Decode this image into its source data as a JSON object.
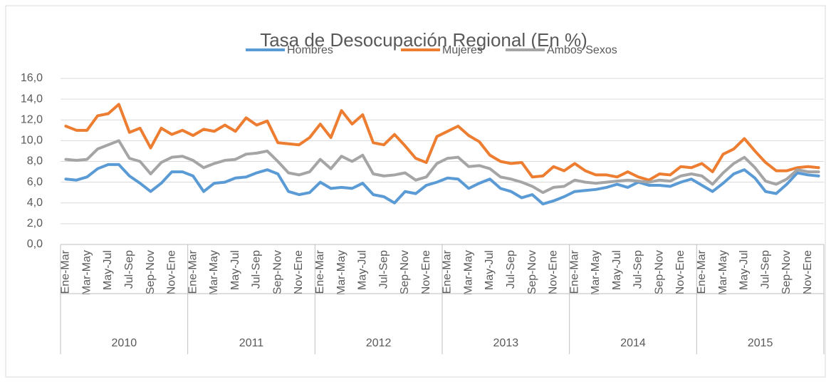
{
  "chart_data": {
    "type": "line",
    "title": "Tasa de Desocupación Regional (En %)",
    "years": [
      "2010",
      "2011",
      "2012",
      "2013",
      "2014",
      "2015"
    ],
    "categories": [
      "Ene-Mar",
      null,
      "Mar-May",
      null,
      "May-Jul",
      null,
      "Jul-Sep",
      null,
      "Sep-Nov",
      null,
      "Nov-Ene",
      null,
      "Ene-Mar",
      null,
      "Mar-May",
      null,
      "May-Jul",
      null,
      "Jul-Sep",
      null,
      "Sep-Nov",
      null,
      "Nov-Ene",
      null,
      "Ene-Mar",
      null,
      "Mar-May",
      null,
      "May-Jul",
      null,
      "Jul-Sep",
      null,
      "Sep-Nov",
      null,
      "Nov-Ene",
      null,
      "Ene-Mar",
      null,
      "Mar-May",
      null,
      "May-Jul",
      null,
      "Jul-Sep",
      null,
      "Sep-Nov",
      null,
      "Nov-Ene",
      null,
      "Ene-Mar",
      null,
      "Mar-May",
      null,
      "May-Jul",
      null,
      "Jul-Sep",
      null,
      "Sep-Nov",
      null,
      "Nov-Ene",
      null,
      "Ene-Mar",
      null,
      "Mar-May",
      null,
      "May-Jul",
      null,
      "Jul-Sep",
      null,
      "Sep-Nov",
      null,
      "Nov-Ene",
      null
    ],
    "series": [
      {
        "name": "Hombres",
        "color": "#5b9bd5",
        "values": [
          6.3,
          6.2,
          6.5,
          7.3,
          7.7,
          7.7,
          6.6,
          5.9,
          5.1,
          5.9,
          7.0,
          7.0,
          6.6,
          5.1,
          5.9,
          6.0,
          6.4,
          6.5,
          6.9,
          7.2,
          6.8,
          5.1,
          4.8,
          5.0,
          6.0,
          5.4,
          5.5,
          5.4,
          5.9,
          4.8,
          4.6,
          4.0,
          5.1,
          4.9,
          5.7,
          6.0,
          6.4,
          6.3,
          5.4,
          5.9,
          6.3,
          5.4,
          5.1,
          4.5,
          4.8,
          3.9,
          4.2,
          4.6,
          5.1,
          5.2,
          5.3,
          5.5,
          5.8,
          5.5,
          6.0,
          5.7,
          5.7,
          5.6,
          6.0,
          6.3,
          5.7,
          5.1,
          5.9,
          6.8,
          7.2,
          6.4,
          5.1,
          4.9,
          5.8,
          6.9,
          6.7,
          6.6
        ]
      },
      {
        "name": "Mujeres",
        "color": "#ed7d31",
        "values": [
          11.4,
          11.0,
          11.0,
          12.4,
          12.6,
          13.5,
          10.8,
          11.2,
          9.3,
          11.2,
          10.6,
          11.0,
          10.5,
          11.1,
          10.9,
          11.5,
          10.9,
          12.2,
          11.5,
          11.9,
          9.8,
          9.7,
          9.6,
          10.3,
          11.6,
          10.3,
          12.9,
          11.6,
          12.5,
          9.8,
          9.6,
          10.6,
          9.5,
          8.3,
          7.9,
          10.4,
          10.9,
          11.4,
          10.5,
          9.9,
          8.6,
          8.0,
          7.8,
          7.9,
          6.5,
          6.6,
          7.5,
          7.1,
          7.8,
          7.1,
          6.7,
          6.7,
          6.5,
          7.0,
          6.5,
          6.2,
          6.8,
          6.7,
          7.5,
          7.4,
          7.8,
          7.0,
          8.7,
          9.2,
          10.2,
          9.0,
          7.9,
          7.1,
          7.1,
          7.4,
          7.5,
          7.4
        ]
      },
      {
        "name": "Ambos Sexos",
        "color": "#a5a5a5",
        "values": [
          8.2,
          8.1,
          8.2,
          9.2,
          9.6,
          10.0,
          8.3,
          8.0,
          6.8,
          7.9,
          8.4,
          8.5,
          8.1,
          7.4,
          7.8,
          8.1,
          8.2,
          8.7,
          8.8,
          9.0,
          8.0,
          6.9,
          6.7,
          7.0,
          8.2,
          7.3,
          8.5,
          8.0,
          8.6,
          6.8,
          6.6,
          6.7,
          6.9,
          6.2,
          6.5,
          7.8,
          8.3,
          8.4,
          7.5,
          7.6,
          7.3,
          6.5,
          6.3,
          6.0,
          5.6,
          5.0,
          5.5,
          5.6,
          6.2,
          6.0,
          5.9,
          6.0,
          6.1,
          6.2,
          6.1,
          6.0,
          6.2,
          6.1,
          6.6,
          6.8,
          6.6,
          5.8,
          6.9,
          7.8,
          8.4,
          7.4,
          6.1,
          5.8,
          6.3,
          7.2,
          7.0,
          7.0
        ]
      }
    ],
    "ylim": [
      0,
      16
    ],
    "yticks": [
      {
        "value": 0,
        "label": "0,0"
      },
      {
        "value": 2,
        "label": "2,0"
      },
      {
        "value": 4,
        "label": "4,0"
      },
      {
        "value": 6,
        "label": "6,0"
      },
      {
        "value": 8,
        "label": "8,0"
      },
      {
        "value": 10,
        "label": "10,0"
      },
      {
        "value": 12,
        "label": "12,0"
      },
      {
        "value": 14,
        "label": "14,0"
      },
      {
        "value": 16,
        "label": "16,0"
      }
    ],
    "grid": true,
    "legend": "top"
  }
}
